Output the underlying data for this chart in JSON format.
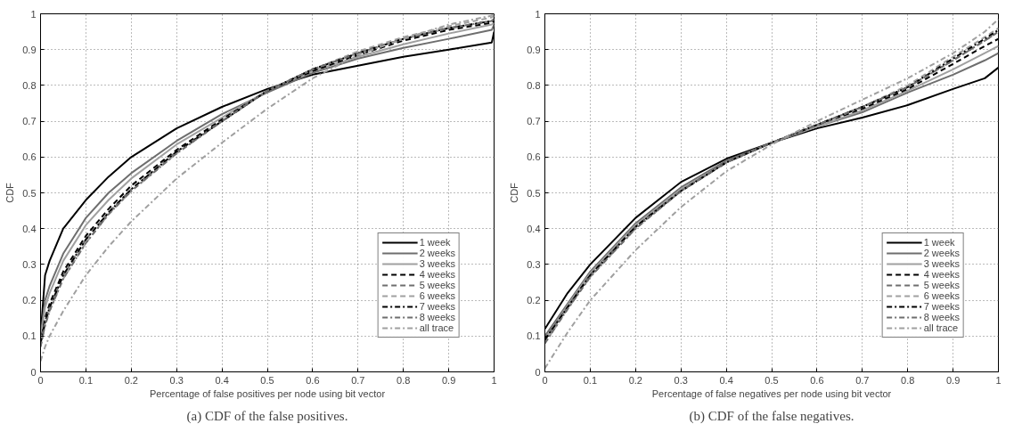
{
  "chart_data": [
    {
      "type": "line",
      "title": "(a) CDF of the false positives.",
      "xlabel": "Percentage of false positives per node using bit vector",
      "ylabel": "CDF",
      "x": [
        0,
        0.01,
        0.02,
        0.05,
        0.1,
        0.15,
        0.2,
        0.3,
        0.4,
        0.5,
        0.6,
        0.7,
        0.8,
        0.9,
        0.995,
        1
      ],
      "xlim": [
        0,
        1
      ],
      "ylim": [
        0,
        1
      ],
      "xticks": [
        0,
        0.1,
        0.2,
        0.3,
        0.4,
        0.5,
        0.6,
        0.7,
        0.8,
        0.9,
        1
      ],
      "yticks": [
        0,
        0.1,
        0.2,
        0.3,
        0.4,
        0.5,
        0.6,
        0.7,
        0.8,
        0.9,
        1
      ],
      "grid": true,
      "legend": "bottom right",
      "marker": "none",
      "series": [
        {
          "name": "1 week",
          "color": "#000000",
          "line_style": "solid",
          "values": [
            0.1,
            0.27,
            0.31,
            0.4,
            0.48,
            0.545,
            0.6,
            0.68,
            0.74,
            0.79,
            0.83,
            0.855,
            0.88,
            0.9,
            0.92,
            0.95
          ]
        },
        {
          "name": "2 weeks",
          "color": "#6e6e6e",
          "line_style": "solid",
          "values": [
            0.1,
            0.2,
            0.24,
            0.33,
            0.43,
            0.5,
            0.555,
            0.645,
            0.72,
            0.78,
            0.835,
            0.875,
            0.905,
            0.93,
            0.955,
            0.97
          ]
        },
        {
          "name": "3 weeks",
          "color": "#a0a0a0",
          "line_style": "solid",
          "values": [
            0.09,
            0.18,
            0.22,
            0.31,
            0.41,
            0.48,
            0.54,
            0.635,
            0.71,
            0.785,
            0.84,
            0.88,
            0.915,
            0.945,
            0.97,
            0.975
          ]
        },
        {
          "name": "4 weeks",
          "color": "#000000",
          "line_style": "dashed",
          "values": [
            0.08,
            0.15,
            0.19,
            0.28,
            0.38,
            0.455,
            0.52,
            0.62,
            0.705,
            0.785,
            0.84,
            0.885,
            0.925,
            0.955,
            0.975,
            0.98
          ]
        },
        {
          "name": "5 weeks",
          "color": "#6e6e6e",
          "line_style": "dashed",
          "values": [
            0.08,
            0.14,
            0.18,
            0.27,
            0.37,
            0.445,
            0.51,
            0.615,
            0.7,
            0.785,
            0.845,
            0.89,
            0.93,
            0.96,
            0.98,
            0.985
          ]
        },
        {
          "name": "6 weeks",
          "color": "#a0a0a0",
          "line_style": "dashed",
          "values": [
            0.07,
            0.13,
            0.17,
            0.26,
            0.36,
            0.44,
            0.505,
            0.61,
            0.7,
            0.785,
            0.845,
            0.895,
            0.935,
            0.965,
            0.99,
            0.995
          ]
        },
        {
          "name": "7 weeks",
          "color": "#000000",
          "line_style": "dashdot",
          "values": [
            0.08,
            0.14,
            0.18,
            0.27,
            0.37,
            0.445,
            0.51,
            0.615,
            0.7,
            0.785,
            0.845,
            0.89,
            0.93,
            0.96,
            0.98,
            0.985
          ]
        },
        {
          "name": "8 weeks",
          "color": "#6e6e6e",
          "line_style": "dashdot",
          "values": [
            0.07,
            0.13,
            0.17,
            0.26,
            0.36,
            0.44,
            0.505,
            0.61,
            0.7,
            0.785,
            0.845,
            0.89,
            0.93,
            0.96,
            0.98,
            0.985
          ]
        },
        {
          "name": "all trace",
          "color": "#a0a0a0",
          "line_style": "dashdot",
          "values": [
            0.03,
            0.07,
            0.1,
            0.17,
            0.27,
            0.35,
            0.42,
            0.54,
            0.64,
            0.735,
            0.82,
            0.885,
            0.93,
            0.97,
            0.995,
            1.0
          ]
        }
      ]
    },
    {
      "type": "line",
      "title": "(b) CDF of the false negatives.",
      "xlabel": "Percentage of false negatives per node using bit vector",
      "ylabel": "CDF",
      "x": [
        0,
        0.05,
        0.1,
        0.2,
        0.3,
        0.4,
        0.5,
        0.6,
        0.7,
        0.8,
        0.9,
        0.97,
        1
      ],
      "xlim": [
        0,
        1
      ],
      "ylim": [
        0,
        1
      ],
      "xticks": [
        0,
        0.1,
        0.2,
        0.3,
        0.4,
        0.5,
        0.6,
        0.7,
        0.8,
        0.9,
        1
      ],
      "yticks": [
        0,
        0.1,
        0.2,
        0.3,
        0.4,
        0.5,
        0.6,
        0.7,
        0.8,
        0.9,
        1
      ],
      "grid": true,
      "legend": "bottom right",
      "marker": "none",
      "series": [
        {
          "name": "1 week",
          "color": "#000000",
          "line_style": "solid",
          "values": [
            0.12,
            0.22,
            0.3,
            0.43,
            0.53,
            0.595,
            0.64,
            0.68,
            0.71,
            0.745,
            0.79,
            0.82,
            0.85
          ]
        },
        {
          "name": "2 weeks",
          "color": "#6e6e6e",
          "line_style": "solid",
          "values": [
            0.1,
            0.19,
            0.28,
            0.415,
            0.515,
            0.59,
            0.64,
            0.685,
            0.725,
            0.78,
            0.83,
            0.87,
            0.89
          ]
        },
        {
          "name": "3 weeks",
          "color": "#a0a0a0",
          "line_style": "solid",
          "values": [
            0.09,
            0.185,
            0.275,
            0.41,
            0.51,
            0.585,
            0.64,
            0.685,
            0.73,
            0.785,
            0.845,
            0.89,
            0.91
          ]
        },
        {
          "name": "4 weeks",
          "color": "#000000",
          "line_style": "dashed",
          "values": [
            0.09,
            0.18,
            0.27,
            0.405,
            0.505,
            0.585,
            0.64,
            0.69,
            0.735,
            0.79,
            0.86,
            0.91,
            0.93
          ]
        },
        {
          "name": "5 weeks",
          "color": "#6e6e6e",
          "line_style": "dashed",
          "values": [
            0.09,
            0.18,
            0.27,
            0.405,
            0.505,
            0.585,
            0.64,
            0.69,
            0.74,
            0.795,
            0.87,
            0.925,
            0.95
          ]
        },
        {
          "name": "6 weeks",
          "color": "#a0a0a0",
          "line_style": "dashed",
          "values": [
            0.08,
            0.175,
            0.265,
            0.4,
            0.505,
            0.585,
            0.64,
            0.69,
            0.74,
            0.8,
            0.88,
            0.935,
            0.96
          ]
        },
        {
          "name": "7 weeks",
          "color": "#000000",
          "line_style": "dashdot",
          "values": [
            0.09,
            0.18,
            0.27,
            0.405,
            0.505,
            0.585,
            0.64,
            0.69,
            0.74,
            0.795,
            0.875,
            0.93,
            0.955
          ]
        },
        {
          "name": "8 weeks",
          "color": "#6e6e6e",
          "line_style": "dashdot",
          "values": [
            0.08,
            0.175,
            0.265,
            0.4,
            0.505,
            0.585,
            0.64,
            0.69,
            0.74,
            0.795,
            0.87,
            0.925,
            0.95
          ]
        },
        {
          "name": "all trace",
          "color": "#a0a0a0",
          "line_style": "dashdot",
          "values": [
            0.01,
            0.11,
            0.2,
            0.34,
            0.46,
            0.56,
            0.635,
            0.7,
            0.76,
            0.82,
            0.89,
            0.95,
            0.985
          ]
        }
      ]
    }
  ]
}
